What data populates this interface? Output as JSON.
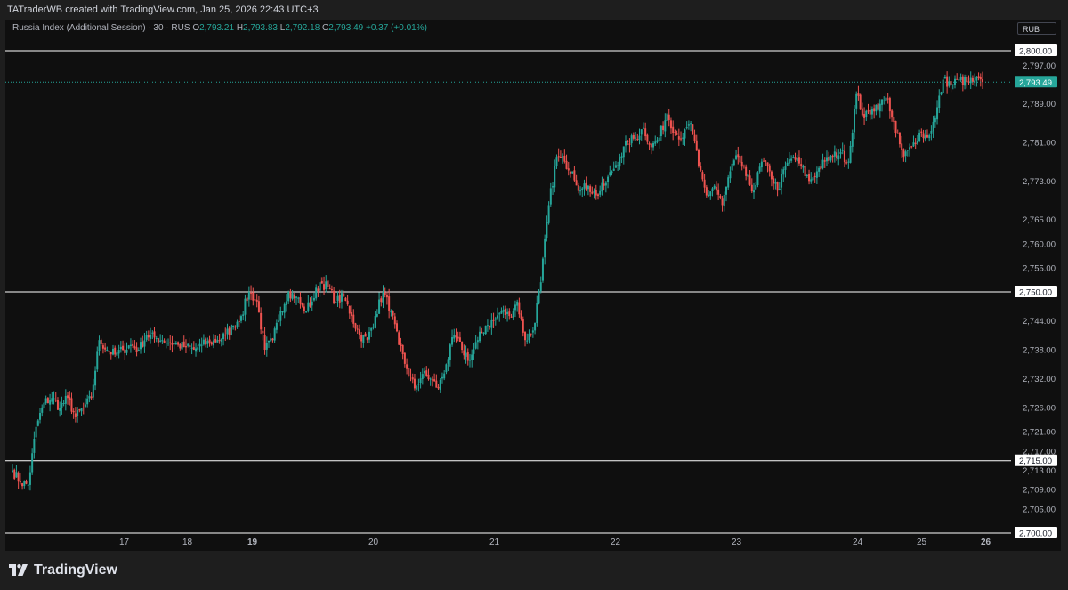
{
  "header": {
    "attribution": "TATraderWB created with TradingView.com, Jan 25, 2026 22:43 UTC+3"
  },
  "legend": {
    "symbol": "Russia Index (Additional Session) · 30 · RUS",
    "o_label": "O",
    "o_value": "2,793.21",
    "h_label": "H",
    "h_value": "2,793.83",
    "l_label": "L",
    "l_value": "2,792.18",
    "c_label": "C",
    "c_value": "2,793.49",
    "change": "+0.37 (+0.01%)"
  },
  "currency_button": "RUB",
  "brand": {
    "name": "TradingView",
    "icon": "tradingview-logo-icon"
  },
  "colors": {
    "up": "#26a69a",
    "down": "#ef5350",
    "level_line": "#ffffff",
    "last_price_badge": "#26a69a",
    "pane_bg": "#0f0f0f",
    "frame_bg": "#1e1e1e"
  },
  "chart_data": {
    "type": "candlestick",
    "timeframe": "30",
    "ylim": [
      2697,
      2803
    ],
    "y_ticks": [
      "2,797.00",
      "2,789.00",
      "2,781.00",
      "2,773.00",
      "2,765.00",
      "2,760.00",
      "2,755.00",
      "2,744.00",
      "2,738.00",
      "2,732.00",
      "2,726.00",
      "2,721.00",
      "2,717.00",
      "2,713.00",
      "2,709.00",
      "2,705.00"
    ],
    "x_ticks": [
      {
        "label": "17",
        "bold": false
      },
      {
        "label": "18",
        "bold": false
      },
      {
        "label": "19",
        "bold": true
      },
      {
        "label": "20",
        "bold": false
      },
      {
        "label": "21",
        "bold": false
      },
      {
        "label": "22",
        "bold": false
      },
      {
        "label": "23",
        "bold": false
      },
      {
        "label": "24",
        "bold": false
      },
      {
        "label": "25",
        "bold": false
      },
      {
        "label": "26",
        "bold": true
      }
    ],
    "horizontal_levels": [
      "2,800.00",
      "2,750.00",
      "2,715.00",
      "2,700.00"
    ],
    "last_price": "2,793.49",
    "last_close": 2793.49,
    "grid": false,
    "anchors": [
      [
        0,
        2713
      ],
      [
        1,
        2710.5
      ],
      [
        2,
        2710
      ],
      [
        3,
        2722
      ],
      [
        4,
        2727
      ],
      [
        5,
        2728
      ],
      [
        6,
        2726
      ],
      [
        7,
        2728
      ],
      [
        8,
        2724
      ],
      [
        9,
        2726
      ],
      [
        10,
        2728
      ],
      [
        11,
        2740
      ],
      [
        12,
        2738
      ],
      [
        13,
        2737
      ],
      [
        14,
        2738
      ],
      [
        15,
        2739
      ],
      [
        16,
        2738
      ],
      [
        17,
        2741
      ],
      [
        18,
        2740.5
      ],
      [
        19,
        2740
      ],
      [
        20,
        2739.5
      ],
      [
        21,
        2739
      ],
      [
        22,
        2738.5
      ],
      [
        23,
        2738
      ],
      [
        24,
        2739
      ],
      [
        25,
        2739.5
      ],
      [
        26,
        2740
      ],
      [
        27,
        2741
      ],
      [
        28,
        2743
      ],
      [
        29,
        2745
      ],
      [
        30,
        2750
      ],
      [
        31,
        2748
      ],
      [
        32,
        2738
      ],
      [
        33,
        2740
      ],
      [
        34,
        2746
      ],
      [
        35,
        2750
      ],
      [
        36,
        2749
      ],
      [
        37,
        2746
      ],
      [
        38,
        2748
      ],
      [
        39,
        2752
      ],
      [
        40,
        2751
      ],
      [
        41,
        2748
      ],
      [
        42,
        2749
      ],
      [
        43,
        2745
      ],
      [
        44,
        2741
      ],
      [
        45,
        2740
      ],
      [
        46,
        2745
      ],
      [
        47,
        2750
      ],
      [
        48,
        2746
      ],
      [
        49,
        2739
      ],
      [
        50,
        2734
      ],
      [
        51,
        2730
      ],
      [
        52,
        2733
      ],
      [
        53,
        2732
      ],
      [
        54,
        2730
      ],
      [
        55,
        2735
      ],
      [
        56,
        2741
      ],
      [
        57,
        2738
      ],
      [
        58,
        2736
      ],
      [
        59,
        2740
      ],
      [
        60,
        2743
      ],
      [
        61,
        2744
      ],
      [
        62,
        2746
      ],
      [
        63,
        2745
      ],
      [
        64,
        2748
      ],
      [
        65,
        2740
      ],
      [
        66,
        2742
      ],
      [
        67,
        2752
      ],
      [
        68,
        2768
      ],
      [
        69,
        2778
      ],
      [
        70,
        2777
      ],
      [
        71,
        2775
      ],
      [
        72,
        2771
      ],
      [
        73,
        2772
      ],
      [
        74,
        2770
      ],
      [
        75,
        2772
      ],
      [
        76,
        2775
      ],
      [
        77,
        2778
      ],
      [
        78,
        2781
      ],
      [
        79,
        2782
      ],
      [
        80,
        2784
      ],
      [
        81,
        2780
      ],
      [
        82,
        2782
      ],
      [
        83,
        2787
      ],
      [
        84,
        2783
      ],
      [
        85,
        2782
      ],
      [
        86,
        2785
      ],
      [
        87,
        2776
      ],
      [
        88,
        2770
      ],
      [
        89,
        2772
      ],
      [
        90,
        2768
      ],
      [
        91,
        2775
      ],
      [
        92,
        2778
      ],
      [
        93,
        2774
      ],
      [
        94,
        2771
      ],
      [
        95,
        2777
      ],
      [
        96,
        2775
      ],
      [
        97,
        2771
      ],
      [
        98,
        2776
      ],
      [
        99,
        2778
      ],
      [
        100,
        2776
      ],
      [
        101,
        2773
      ],
      [
        102,
        2775
      ],
      [
        103,
        2777
      ],
      [
        104,
        2778
      ],
      [
        105,
        2779
      ],
      [
        106,
        2777
      ],
      [
        107,
        2791
      ],
      [
        108,
        2786
      ],
      [
        109,
        2788
      ],
      [
        110,
        2789
      ],
      [
        111,
        2790
      ],
      [
        112,
        2783
      ],
      [
        113,
        2778
      ],
      [
        114,
        2780
      ],
      [
        115,
        2783
      ],
      [
        116,
        2782
      ],
      [
        117,
        2786
      ],
      [
        118,
        2794
      ],
      [
        119,
        2793
      ],
      [
        120,
        2794
      ],
      [
        121,
        2793.5
      ],
      [
        122,
        2793.8
      ],
      [
        123,
        2793.49
      ]
    ]
  }
}
